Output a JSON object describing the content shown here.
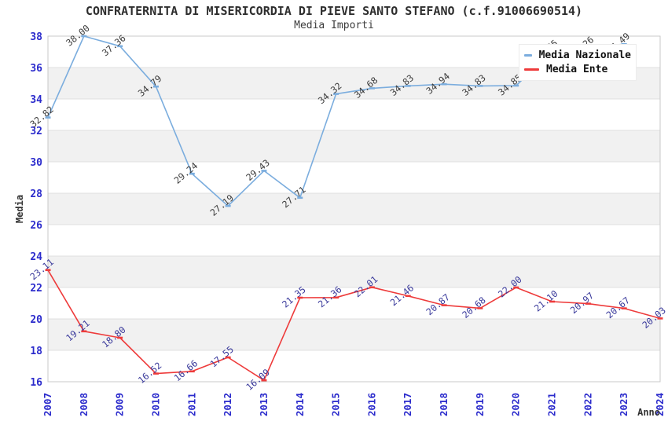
{
  "header": {
    "title": "CONFRATERNITA DI MISERICORDIA DI PIEVE SANTO STEFANO (c.f.91006690514)",
    "subtitle": "Media Importi"
  },
  "legend": {
    "position": "top-right",
    "items": [
      {
        "label": "Media Nazionale",
        "color": "#7badde"
      },
      {
        "label": "Media Ente",
        "color": "#ee3b3b"
      }
    ]
  },
  "chart_data": {
    "type": "line",
    "title": "CONFRATERNITA DI MISERICORDIA DI PIEVE SANTO STEFANO (c.f.91006690514)",
    "subtitle": "Media Importi",
    "xlabel": "Anno",
    "ylabel": "Media",
    "x": [
      2007,
      2008,
      2009,
      2010,
      2011,
      2012,
      2013,
      2014,
      2015,
      2016,
      2017,
      2018,
      2019,
      2020,
      2021,
      2022,
      2023,
      2024
    ],
    "series": [
      {
        "name": "Media Nazionale",
        "color": "#7badde",
        "label_color": "#3c3c3c",
        "values": [
          32.82,
          38.0,
          37.36,
          34.79,
          29.24,
          27.19,
          29.43,
          27.71,
          34.32,
          34.68,
          34.83,
          34.94,
          34.83,
          34.85,
          37.05,
          37.26,
          37.49,
          null
        ]
      },
      {
        "name": "Media Ente",
        "color": "#ee3b3b",
        "label_color": "#39399b",
        "values": [
          23.11,
          19.21,
          18.8,
          16.52,
          16.66,
          17.55,
          16.09,
          21.35,
          21.36,
          22.01,
          21.46,
          20.87,
          20.68,
          22.0,
          21.1,
          20.97,
          20.67,
          20.03
        ]
      }
    ],
    "ylim": [
      16,
      38
    ],
    "ytick_step": 2,
    "grid": "horizontal",
    "band_fill_alternating": true,
    "legend_position": "top-right",
    "notes": "Media Nazionale 2022 data label is hidden behind the legend box; value estimated from line (~37.26). Media Nazionale has no 2024 point.",
    "tick_label_color": "#2b2bcc",
    "axis_title_color": "#333333",
    "band_color": "#f1f1f1",
    "gridline_color": "#e0e0e0",
    "border_color": "#c8c8c8"
  }
}
